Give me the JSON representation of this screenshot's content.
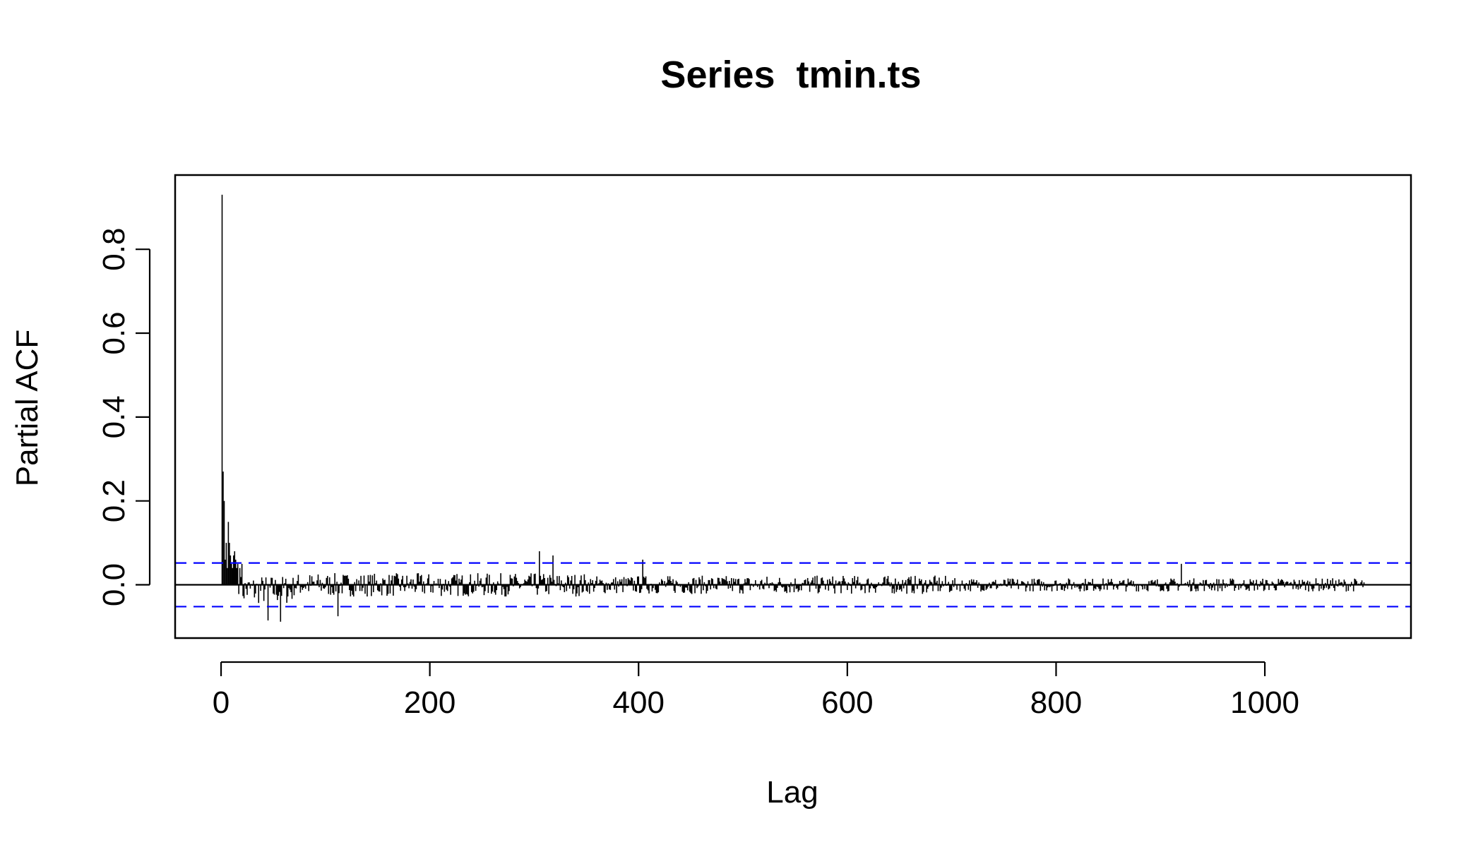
{
  "chart_data": {
    "type": "bar",
    "title": "Series  tmin.ts",
    "xlabel": "Lag",
    "ylabel": "Partial ACF",
    "xlim": [
      -44,
      1140
    ],
    "ylim": [
      -0.127,
      0.977
    ],
    "x_ticks": [
      0,
      200,
      400,
      600,
      800,
      1000
    ],
    "x_tick_labels": [
      "0",
      "200",
      "400",
      "600",
      "800",
      "1000"
    ],
    "y_ticks": [
      0.0,
      0.2,
      0.4,
      0.6,
      0.8
    ],
    "y_tick_labels": [
      "0.0",
      "0.2",
      "0.4",
      "0.6",
      "0.8"
    ],
    "confidence_bound": 0.052,
    "lag_range": [
      1,
      1095
    ],
    "notable_lags": [
      {
        "lag": 1,
        "pacf": 0.93
      },
      {
        "lag": 2,
        "pacf": 0.27
      },
      {
        "lag": 3,
        "pacf": 0.2
      },
      {
        "lag": 4,
        "pacf": 0.06
      },
      {
        "lag": 5,
        "pacf": 0.1
      },
      {
        "lag": 6,
        "pacf": 0.04
      },
      {
        "lag": 7,
        "pacf": 0.15
      },
      {
        "lag": 8,
        "pacf": 0.1
      },
      {
        "lag": 9,
        "pacf": 0.07
      },
      {
        "lag": 10,
        "pacf": 0.05
      },
      {
        "lag": 11,
        "pacf": 0.04
      },
      {
        "lag": 12,
        "pacf": 0.07
      },
      {
        "lag": 13,
        "pacf": 0.08
      },
      {
        "lag": 14,
        "pacf": 0.06
      },
      {
        "lag": 15,
        "pacf": 0.04
      },
      {
        "lag": 16,
        "pacf": 0.05
      },
      {
        "lag": 18,
        "pacf": 0.04
      },
      {
        "lag": 20,
        "pacf": 0.05
      },
      {
        "lag": 45,
        "pacf": -0.085
      },
      {
        "lag": 57,
        "pacf": -0.088
      },
      {
        "lag": 112,
        "pacf": -0.075
      },
      {
        "lag": 305,
        "pacf": 0.08
      },
      {
        "lag": 318,
        "pacf": 0.07
      },
      {
        "lag": 404,
        "pacf": 0.06
      },
      {
        "lag": 920,
        "pacf": 0.05
      }
    ],
    "colors": {
      "spikes": "#000000",
      "confidence_lines": "#0000ff",
      "zero_line": "#000000"
    },
    "grid": false,
    "legend": "none"
  }
}
